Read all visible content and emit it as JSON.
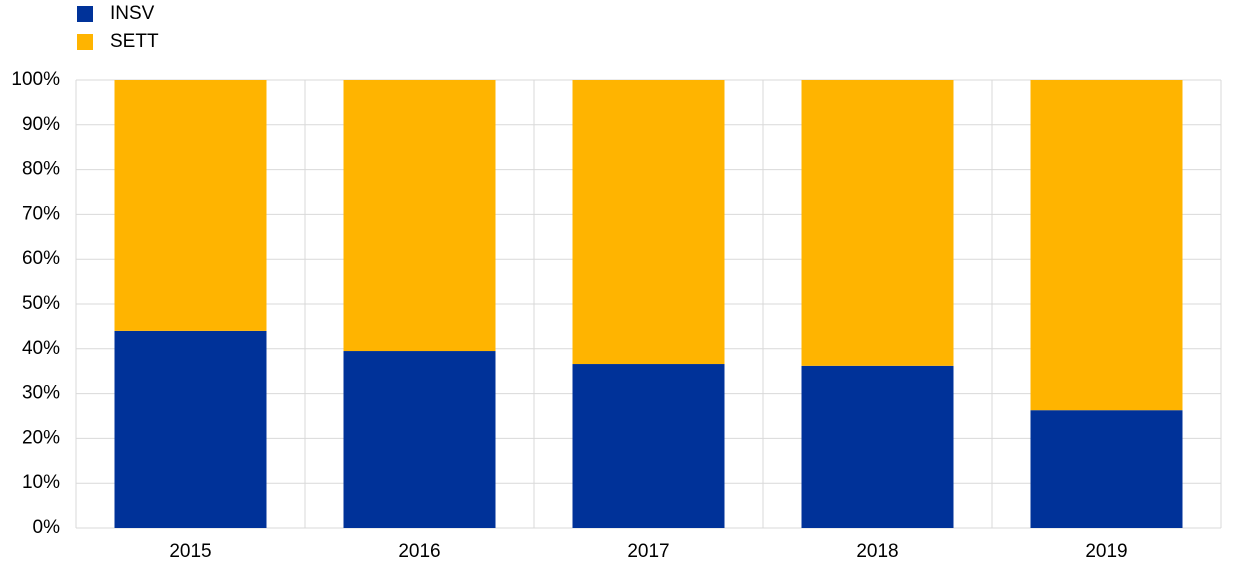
{
  "chart_data": {
    "type": "stacked_bar",
    "categories": [
      "2015",
      "2016",
      "2017",
      "2018",
      "2019"
    ],
    "series": [
      {
        "name": "INSV",
        "color": "#003299",
        "values": [
          44.0,
          39.5,
          36.6,
          36.2,
          26.3
        ]
      },
      {
        "name": "SETT",
        "color": "#ffb400",
        "values": [
          56.0,
          60.5,
          63.4,
          63.8,
          73.7
        ]
      }
    ],
    "ylim": [
      0,
      100
    ],
    "yticks": [
      {
        "value": 0,
        "label": "0%"
      },
      {
        "value": 10,
        "label": "10%"
      },
      {
        "value": 20,
        "label": "20%"
      },
      {
        "value": 30,
        "label": "30%"
      },
      {
        "value": 40,
        "label": "40%"
      },
      {
        "value": 50,
        "label": "50%"
      },
      {
        "value": 60,
        "label": "60%"
      },
      {
        "value": 70,
        "label": "70%"
      },
      {
        "value": 80,
        "label": "80%"
      },
      {
        "value": 90,
        "label": "90%"
      },
      {
        "value": 100,
        "label": "100%"
      }
    ],
    "grid": true,
    "legend": "top-left"
  }
}
